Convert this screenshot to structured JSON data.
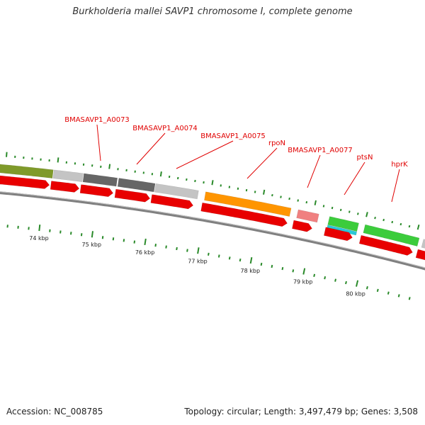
{
  "title": "Burkholderia mallei SAVP1 chromosome I, complete genome",
  "footer": {
    "accession": "Accession: NC_008785",
    "stats": "Topology: circular; Length: 3,497,479 bp; Genes: 3,508"
  },
  "colors": {
    "cds": "#e80000",
    "olive_feature": "#7f9a2a",
    "gray_light": "#c4c4c4",
    "gray_dark": "#666666",
    "orange_gene": "#ff9500",
    "pink_gene": "#f08080",
    "green_gene": "#3ccc3c",
    "cyan_gene": "#28c8d8",
    "backbone": "#808080",
    "ticks": "#2a8a2a",
    "label_text": "#e00000"
  },
  "gene_labels": [
    {
      "name": "BMASAVP1_A0073"
    },
    {
      "name": "BMASAVP1_A0074"
    },
    {
      "name": "BMASAVP1_A0075"
    },
    {
      "name": "rpoN"
    },
    {
      "name": "BMASAVP1_A0077"
    },
    {
      "name": "ptsN"
    },
    {
      "name": "hprK"
    }
  ],
  "kbp_labels": [
    "74 kbp",
    "75 kbp",
    "76 kbp",
    "77 kbp",
    "78 kbp",
    "79 kbp",
    "80 kbp"
  ]
}
